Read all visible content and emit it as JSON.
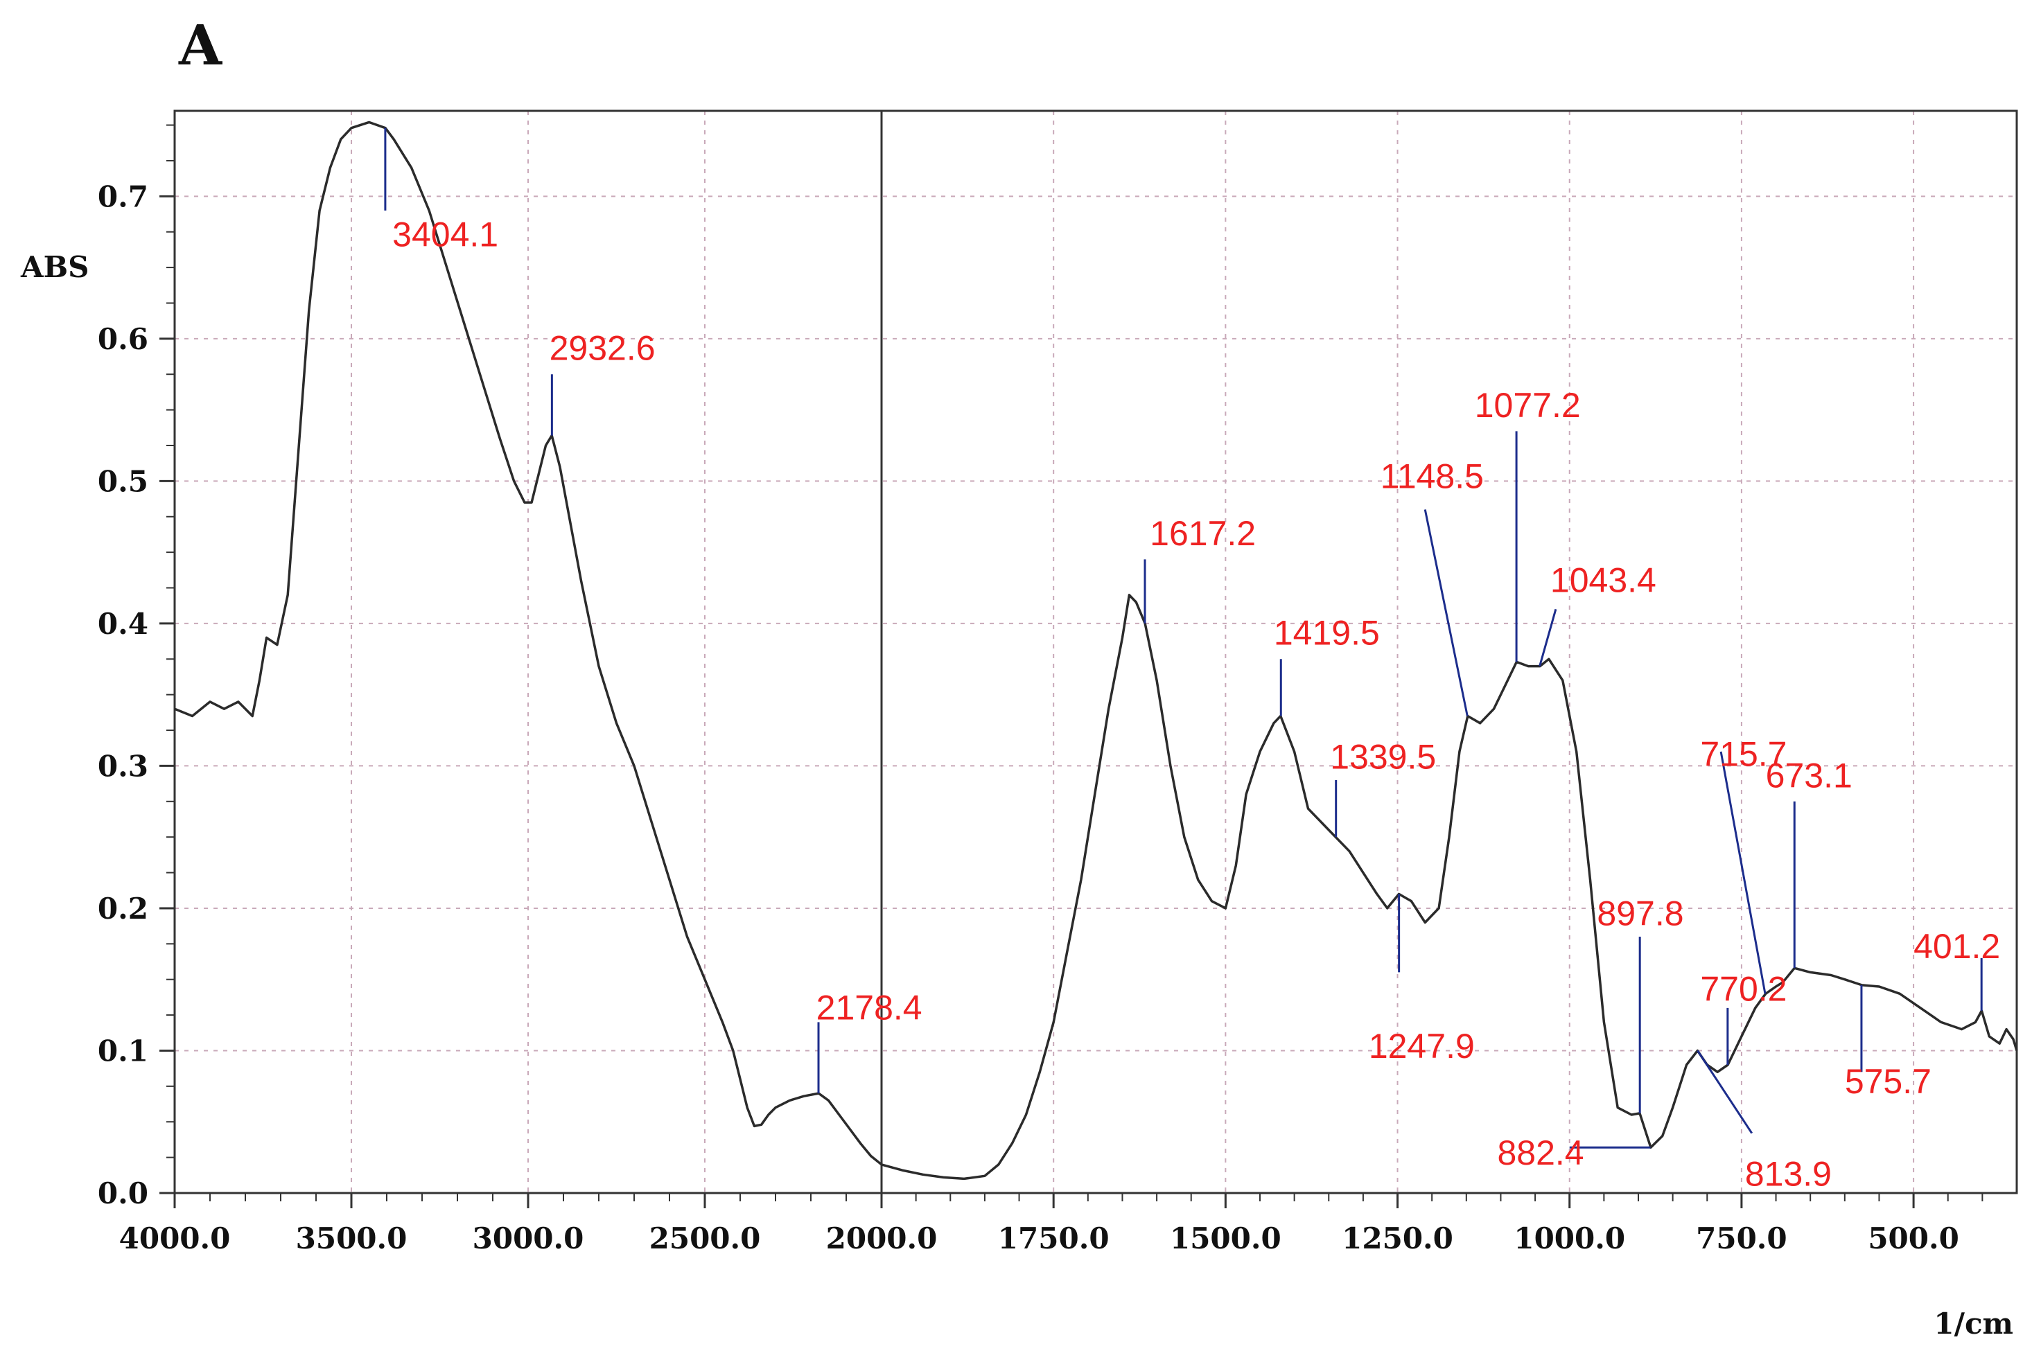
{
  "chart_data": {
    "type": "line",
    "panel_label": "A",
    "xlabel": "1/cm",
    "ylabel": "ABS",
    "xlim": [
      4000,
      350
    ],
    "ylim": [
      0,
      0.76
    ],
    "x_axis_segments": [
      {
        "from": 4000,
        "to": 2000
      },
      {
        "from": 2000,
        "to": 350
      }
    ],
    "x_ticks": [
      {
        "value": 4000,
        "label": "4000.0"
      },
      {
        "value": 3500,
        "label": "3500.0"
      },
      {
        "value": 3000,
        "label": "3000.0"
      },
      {
        "value": 2500,
        "label": "2500.0"
      },
      {
        "value": 2000,
        "label": "2000.0"
      },
      {
        "value": 1750,
        "label": "1750.0"
      },
      {
        "value": 1500,
        "label": "1500.0"
      },
      {
        "value": 1250,
        "label": "1250.0"
      },
      {
        "value": 1000,
        "label": "1000.0"
      },
      {
        "value": 750,
        "label": "750.0"
      },
      {
        "value": 500,
        "label": "500.0"
      }
    ],
    "y_ticks": [
      {
        "value": 0.0,
        "label": "0.0"
      },
      {
        "value": 0.1,
        "label": "0.1"
      },
      {
        "value": 0.2,
        "label": "0.2"
      },
      {
        "value": 0.3,
        "label": "0.3"
      },
      {
        "value": 0.4,
        "label": "0.4"
      },
      {
        "value": 0.5,
        "label": "0.5"
      },
      {
        "value": 0.6,
        "label": "0.6"
      },
      {
        "value": 0.7,
        "label": "0.7"
      }
    ],
    "grid": true,
    "colors": {
      "line": "#2b2b2b",
      "grid": "#c9a9b9",
      "annotation_text": "#ee2222",
      "annotation_line": "#1c2d8c"
    },
    "series": [
      {
        "points": [
          [
            4000,
            0.34
          ],
          [
            3950,
            0.335
          ],
          [
            3900,
            0.345
          ],
          [
            3860,
            0.34
          ],
          [
            3820,
            0.345
          ],
          [
            3780,
            0.335
          ],
          [
            3760,
            0.36
          ],
          [
            3740,
            0.39
          ],
          [
            3710,
            0.385
          ],
          [
            3680,
            0.42
          ],
          [
            3650,
            0.52
          ],
          [
            3620,
            0.62
          ],
          [
            3590,
            0.69
          ],
          [
            3560,
            0.72
          ],
          [
            3530,
            0.74
          ],
          [
            3500,
            0.748
          ],
          [
            3450,
            0.752
          ],
          [
            3404,
            0.748
          ],
          [
            3380,
            0.74
          ],
          [
            3330,
            0.72
          ],
          [
            3280,
            0.69
          ],
          [
            3230,
            0.65
          ],
          [
            3180,
            0.61
          ],
          [
            3130,
            0.57
          ],
          [
            3080,
            0.53
          ],
          [
            3040,
            0.5
          ],
          [
            3010,
            0.485
          ],
          [
            2990,
            0.485
          ],
          [
            2970,
            0.505
          ],
          [
            2950,
            0.525
          ],
          [
            2933,
            0.532
          ],
          [
            2910,
            0.51
          ],
          [
            2880,
            0.47
          ],
          [
            2850,
            0.43
          ],
          [
            2800,
            0.37
          ],
          [
            2750,
            0.33
          ],
          [
            2700,
            0.3
          ],
          [
            2650,
            0.26
          ],
          [
            2600,
            0.22
          ],
          [
            2550,
            0.18
          ],
          [
            2500,
            0.15
          ],
          [
            2450,
            0.12
          ],
          [
            2420,
            0.1
          ],
          [
            2400,
            0.08
          ],
          [
            2380,
            0.06
          ],
          [
            2360,
            0.047
          ],
          [
            2340,
            0.048
          ],
          [
            2320,
            0.055
          ],
          [
            2300,
            0.06
          ],
          [
            2260,
            0.065
          ],
          [
            2220,
            0.068
          ],
          [
            2178,
            0.07
          ],
          [
            2150,
            0.065
          ],
          [
            2120,
            0.055
          ],
          [
            2090,
            0.045
          ],
          [
            2060,
            0.035
          ],
          [
            2030,
            0.026
          ],
          [
            2000,
            0.02
          ],
          [
            1970,
            0.016
          ],
          [
            1940,
            0.013
          ],
          [
            1910,
            0.011
          ],
          [
            1880,
            0.01
          ],
          [
            1850,
            0.012
          ],
          [
            1830,
            0.02
          ],
          [
            1810,
            0.035
          ],
          [
            1790,
            0.055
          ],
          [
            1770,
            0.085
          ],
          [
            1750,
            0.12
          ],
          [
            1730,
            0.17
          ],
          [
            1710,
            0.22
          ],
          [
            1690,
            0.28
          ],
          [
            1670,
            0.34
          ],
          [
            1650,
            0.39
          ],
          [
            1640,
            0.42
          ],
          [
            1630,
            0.415
          ],
          [
            1617,
            0.4
          ],
          [
            1600,
            0.36
          ],
          [
            1580,
            0.3
          ],
          [
            1560,
            0.25
          ],
          [
            1540,
            0.22
          ],
          [
            1520,
            0.205
          ],
          [
            1500,
            0.2
          ],
          [
            1485,
            0.23
          ],
          [
            1470,
            0.28
          ],
          [
            1450,
            0.31
          ],
          [
            1430,
            0.33
          ],
          [
            1420,
            0.335
          ],
          [
            1400,
            0.31
          ],
          [
            1380,
            0.27
          ],
          [
            1360,
            0.26
          ],
          [
            1340,
            0.25
          ],
          [
            1320,
            0.24
          ],
          [
            1300,
            0.225
          ],
          [
            1280,
            0.21
          ],
          [
            1265,
            0.2
          ],
          [
            1248,
            0.21
          ],
          [
            1230,
            0.205
          ],
          [
            1210,
            0.19
          ],
          [
            1190,
            0.2
          ],
          [
            1175,
            0.25
          ],
          [
            1160,
            0.31
          ],
          [
            1148,
            0.335
          ],
          [
            1130,
            0.33
          ],
          [
            1110,
            0.34
          ],
          [
            1090,
            0.36
          ],
          [
            1077,
            0.373
          ],
          [
            1060,
            0.37
          ],
          [
            1043,
            0.37
          ],
          [
            1030,
            0.375
          ],
          [
            1010,
            0.36
          ],
          [
            990,
            0.31
          ],
          [
            970,
            0.22
          ],
          [
            950,
            0.12
          ],
          [
            930,
            0.06
          ],
          [
            910,
            0.055
          ],
          [
            898,
            0.056
          ],
          [
            882,
            0.032
          ],
          [
            865,
            0.04
          ],
          [
            850,
            0.06
          ],
          [
            830,
            0.09
          ],
          [
            814,
            0.1
          ],
          [
            800,
            0.09
          ],
          [
            785,
            0.085
          ],
          [
            770,
            0.09
          ],
          [
            750,
            0.11
          ],
          [
            730,
            0.13
          ],
          [
            715,
            0.14
          ],
          [
            700,
            0.145
          ],
          [
            690,
            0.148
          ],
          [
            673,
            0.158
          ],
          [
            650,
            0.155
          ],
          [
            620,
            0.153
          ],
          [
            600,
            0.15
          ],
          [
            575,
            0.146
          ],
          [
            550,
            0.145
          ],
          [
            520,
            0.14
          ],
          [
            490,
            0.13
          ],
          [
            460,
            0.12
          ],
          [
            430,
            0.115
          ],
          [
            410,
            0.12
          ],
          [
            401,
            0.128
          ],
          [
            390,
            0.11
          ],
          [
            375,
            0.105
          ],
          [
            365,
            0.115
          ],
          [
            355,
            0.108
          ],
          [
            350,
            0.1
          ]
        ]
      }
    ],
    "annotations": [
      {
        "label": "3404.1",
        "x": 3404.1,
        "y": 0.748,
        "tick_to": 0.69,
        "text_x": 3384,
        "text_y": 0.665,
        "leader": [
          [
            3404.1,
            0.748
          ],
          [
            3404.1,
            0.69
          ]
        ]
      },
      {
        "label": "2932.6",
        "x": 2932.6,
        "y": 0.532,
        "tick_to": 0.575,
        "text_x": 2940,
        "text_y": 0.585,
        "leader": [
          [
            2932.6,
            0.532
          ],
          [
            2932.6,
            0.575
          ]
        ]
      },
      {
        "label": "2178.4",
        "x": 2178.4,
        "y": 0.07,
        "tick_to": 0.12,
        "text_x": 2185,
        "text_y": 0.122,
        "leader": [
          [
            2178.4,
            0.07
          ],
          [
            2178.4,
            0.12
          ]
        ]
      },
      {
        "label": "1617.2",
        "x": 1617.2,
        "y": 0.4,
        "tick_to": 0.445,
        "text_x": 1610,
        "text_y": 0.455,
        "leader": [
          [
            1617.2,
            0.4
          ],
          [
            1617.2,
            0.445
          ]
        ]
      },
      {
        "label": "1419.5",
        "x": 1419.5,
        "y": 0.335,
        "tick_to": 0.375,
        "text_x": 1430,
        "text_y": 0.385,
        "leader": [
          [
            1419.5,
            0.335
          ],
          [
            1419.5,
            0.375
          ]
        ]
      },
      {
        "label": "1339.5",
        "x": 1339.5,
        "y": 0.25,
        "tick_to": 0.29,
        "text_x": 1348,
        "text_y": 0.298,
        "leader": [
          [
            1339.5,
            0.25
          ],
          [
            1339.5,
            0.29
          ]
        ]
      },
      {
        "label": "1247.9",
        "x": 1247.9,
        "y": 0.21,
        "tick_to": 0.155,
        "text_x": 1292,
        "text_y": 0.095,
        "leader": [
          [
            1247.9,
            0.21
          ],
          [
            1247.9,
            0.155
          ]
        ]
      },
      {
        "label": "1148.5",
        "x": 1148.5,
        "y": 0.335,
        "tick_to": 0.48,
        "text_x": 1275,
        "text_y": 0.495,
        "leader": [
          [
            1148.5,
            0.335
          ],
          [
            1210,
            0.48
          ]
        ]
      },
      {
        "label": "1077.2",
        "x": 1077.2,
        "y": 0.373,
        "tick_to": 0.535,
        "text_x": 1138,
        "text_y": 0.545,
        "leader": [
          [
            1077.2,
            0.373
          ],
          [
            1077.2,
            0.535
          ]
        ]
      },
      {
        "label": "1043.4",
        "x": 1043.4,
        "y": 0.37,
        "tick_to": 0.41,
        "text_x": 1028,
        "text_y": 0.422,
        "leader": [
          [
            1043.4,
            0.37
          ],
          [
            1020,
            0.41
          ]
        ]
      },
      {
        "label": "897.8",
        "x": 897.8,
        "y": 0.056,
        "tick_to": 0.18,
        "text_x": 960,
        "text_y": 0.188,
        "leader": [
          [
            897.8,
            0.056
          ],
          [
            897.8,
            0.18
          ]
        ]
      },
      {
        "label": "882.4",
        "x": 882.4,
        "y": 0.032,
        "tick_to": 0.032,
        "text_x": 1105,
        "text_y": 0.02,
        "leader": [
          [
            882.4,
            0.032
          ],
          [
            1000,
            0.032
          ]
        ]
      },
      {
        "label": "813.9",
        "x": 813.9,
        "y": 0.1,
        "tick_to": 0.04,
        "text_x": 745,
        "text_y": 0.005,
        "leader": [
          [
            813.9,
            0.1
          ],
          [
            735,
            0.042
          ]
        ]
      },
      {
        "label": "770.2",
        "x": 770.2,
        "y": 0.09,
        "tick_to": 0.13,
        "text_x": 810,
        "text_y": 0.135,
        "leader": [
          [
            770.2,
            0.09
          ],
          [
            770.2,
            0.13
          ]
        ]
      },
      {
        "label": "715.7",
        "x": 715.7,
        "y": 0.14,
        "tick_to": 0.31,
        "text_x": 810,
        "text_y": 0.3,
        "leader": [
          [
            715.7,
            0.14
          ],
          [
            780,
            0.31
          ]
        ]
      },
      {
        "label": "673.1",
        "x": 673.1,
        "y": 0.158,
        "tick_to": 0.275,
        "text_x": 715,
        "text_y": 0.285,
        "leader": [
          [
            673.1,
            0.158
          ],
          [
            673.1,
            0.275
          ]
        ]
      },
      {
        "label": "575.7",
        "x": 575.7,
        "y": 0.146,
        "tick_to": 0.085,
        "text_x": 600,
        "text_y": 0.07,
        "leader": [
          [
            575.7,
            0.146
          ],
          [
            575.7,
            0.085
          ]
        ]
      },
      {
        "label": "401.2",
        "x": 401.2,
        "y": 0.128,
        "tick_to": 0.165,
        "text_x": 500,
        "text_y": 0.165,
        "leader": [
          [
            401.2,
            0.128
          ],
          [
            401.2,
            0.165
          ]
        ]
      }
    ]
  }
}
